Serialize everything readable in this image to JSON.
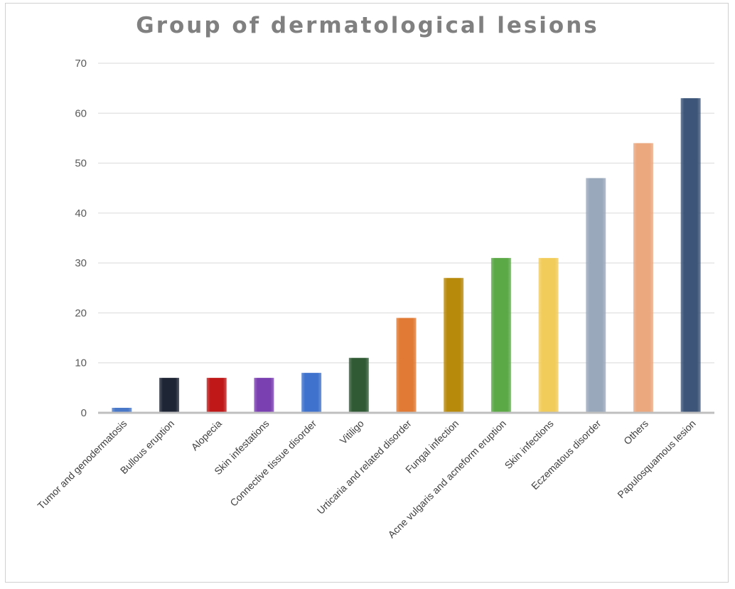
{
  "chart_data": {
    "type": "bar",
    "title": "Group of dermatological lesions",
    "xlabel": "",
    "ylabel": "",
    "ylim": [
      0,
      70
    ],
    "yticks": [
      0,
      10,
      20,
      30,
      40,
      50,
      60,
      70
    ],
    "grid": true,
    "legend": "none",
    "categories": [
      "Tumor and genodermatosis",
      "Bullous eruption",
      "Alopecia",
      "Skin infestations",
      "Connective tissue disorder",
      "Vitiligo",
      "Urticaria and related disorder",
      "Fungal infection",
      "Acne vulgaris and acneform eruption",
      "Skin infections",
      "Eczematous disorder",
      "Others",
      "Papulosquamous lesion"
    ],
    "values": [
      1,
      7,
      7,
      7,
      8,
      11,
      19,
      27,
      31,
      31,
      47,
      54,
      63
    ],
    "colors": [
      "#4a78c8",
      "#1e2535",
      "#c01818",
      "#7a3fb0",
      "#3f72cc",
      "#2f5a34",
      "#e07a34",
      "#b88a0c",
      "#5aa846",
      "#f2cc5a",
      "#9aa8bc",
      "#eba77e",
      "#3c5578"
    ]
  }
}
